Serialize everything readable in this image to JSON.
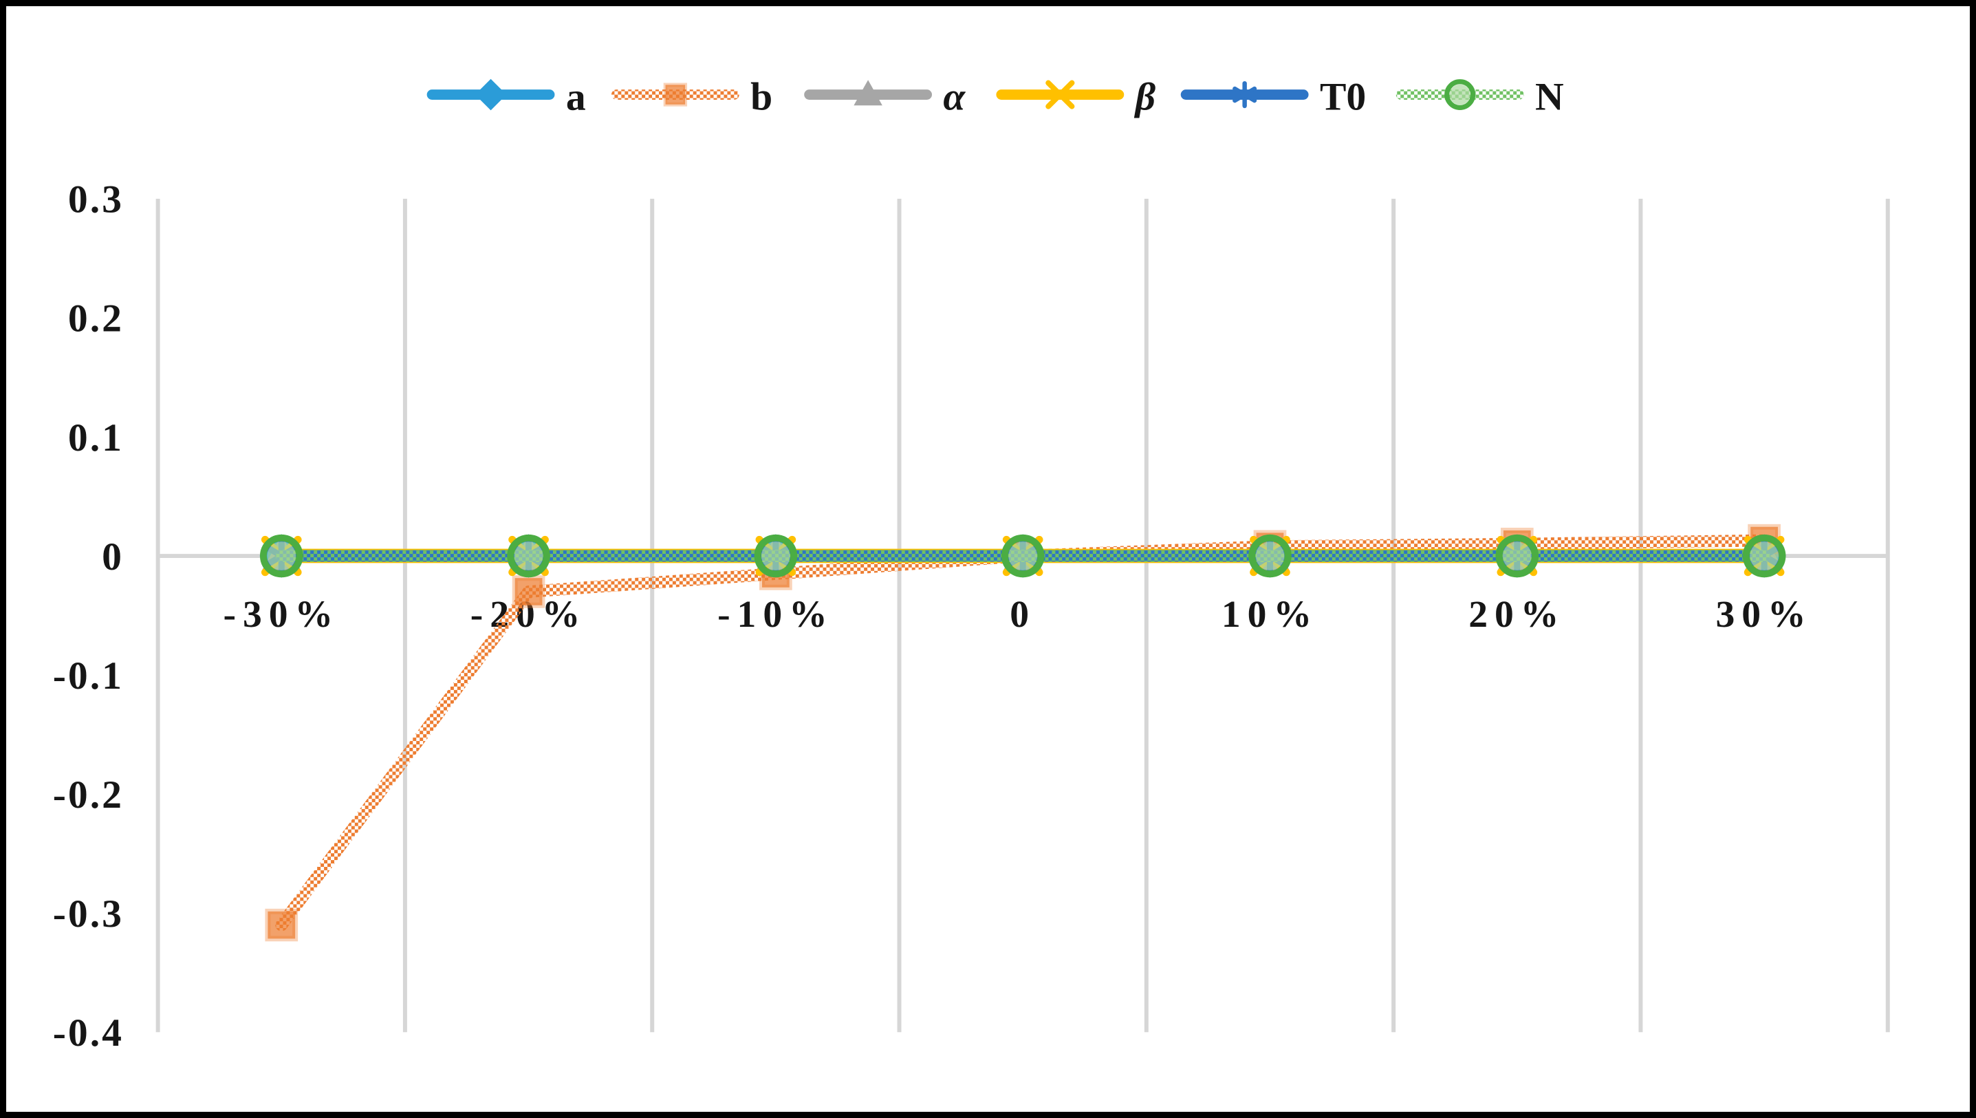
{
  "chart_data": {
    "type": "line",
    "title": "",
    "xlabel": "",
    "ylabel": "",
    "categories": [
      "-30%",
      "-20%",
      "-10%",
      "0",
      "10%",
      "20%",
      "30%"
    ],
    "y_ticks": [
      0.3,
      0.2,
      0.1,
      0,
      -0.1,
      -0.2,
      -0.3,
      -0.4
    ],
    "y_tick_labels": [
      "0.3",
      "0.2",
      "0.1",
      "0",
      "-0.1",
      "-0.2",
      "-0.3",
      "-0.4"
    ],
    "ylim": [
      -0.4,
      0.3
    ],
    "grid": "vertical-gridlines-only",
    "legend_position": "top-center",
    "axis_color": "#D6D6D6",
    "text_color": "#161616",
    "series": [
      {
        "key": "a",
        "name": "a",
        "italic": false,
        "color": "#2B9CD8",
        "marker": "diamond",
        "line_style": "solid",
        "values": [
          0,
          0,
          0,
          0,
          0,
          0,
          0
        ]
      },
      {
        "key": "b",
        "name": "b",
        "italic": false,
        "color": "#ED7D31",
        "marker": "square",
        "line_style": "patterned",
        "pattern_color": "#ED7D31",
        "values": [
          -0.31,
          -0.03,
          -0.015,
          0,
          0.008,
          0.01,
          0.013
        ]
      },
      {
        "key": "alpha",
        "name": "α",
        "italic": true,
        "color": "#A6A6A6",
        "marker": "triangle",
        "line_style": "solid",
        "values": [
          0,
          0,
          0,
          0,
          0,
          0,
          0
        ]
      },
      {
        "key": "beta",
        "name": "β",
        "italic": true,
        "color": "#FFC000",
        "marker": "x",
        "line_style": "solid",
        "values": [
          0,
          0,
          0,
          0,
          0,
          0,
          0
        ]
      },
      {
        "key": "t0",
        "name": "T0",
        "italic": false,
        "color": "#2E75C6",
        "marker": "asterisk",
        "line_style": "solid",
        "values": [
          0,
          0,
          0,
          0,
          0,
          0,
          0
        ]
      },
      {
        "key": "n",
        "name": "N",
        "italic": false,
        "color": "#4BAD43",
        "marker": "circle",
        "line_style": "patterned",
        "pattern_color": "#70C163",
        "fill_light": "#ABD8A0",
        "values": [
          0,
          0,
          0,
          0,
          0,
          0,
          0
        ]
      }
    ]
  }
}
